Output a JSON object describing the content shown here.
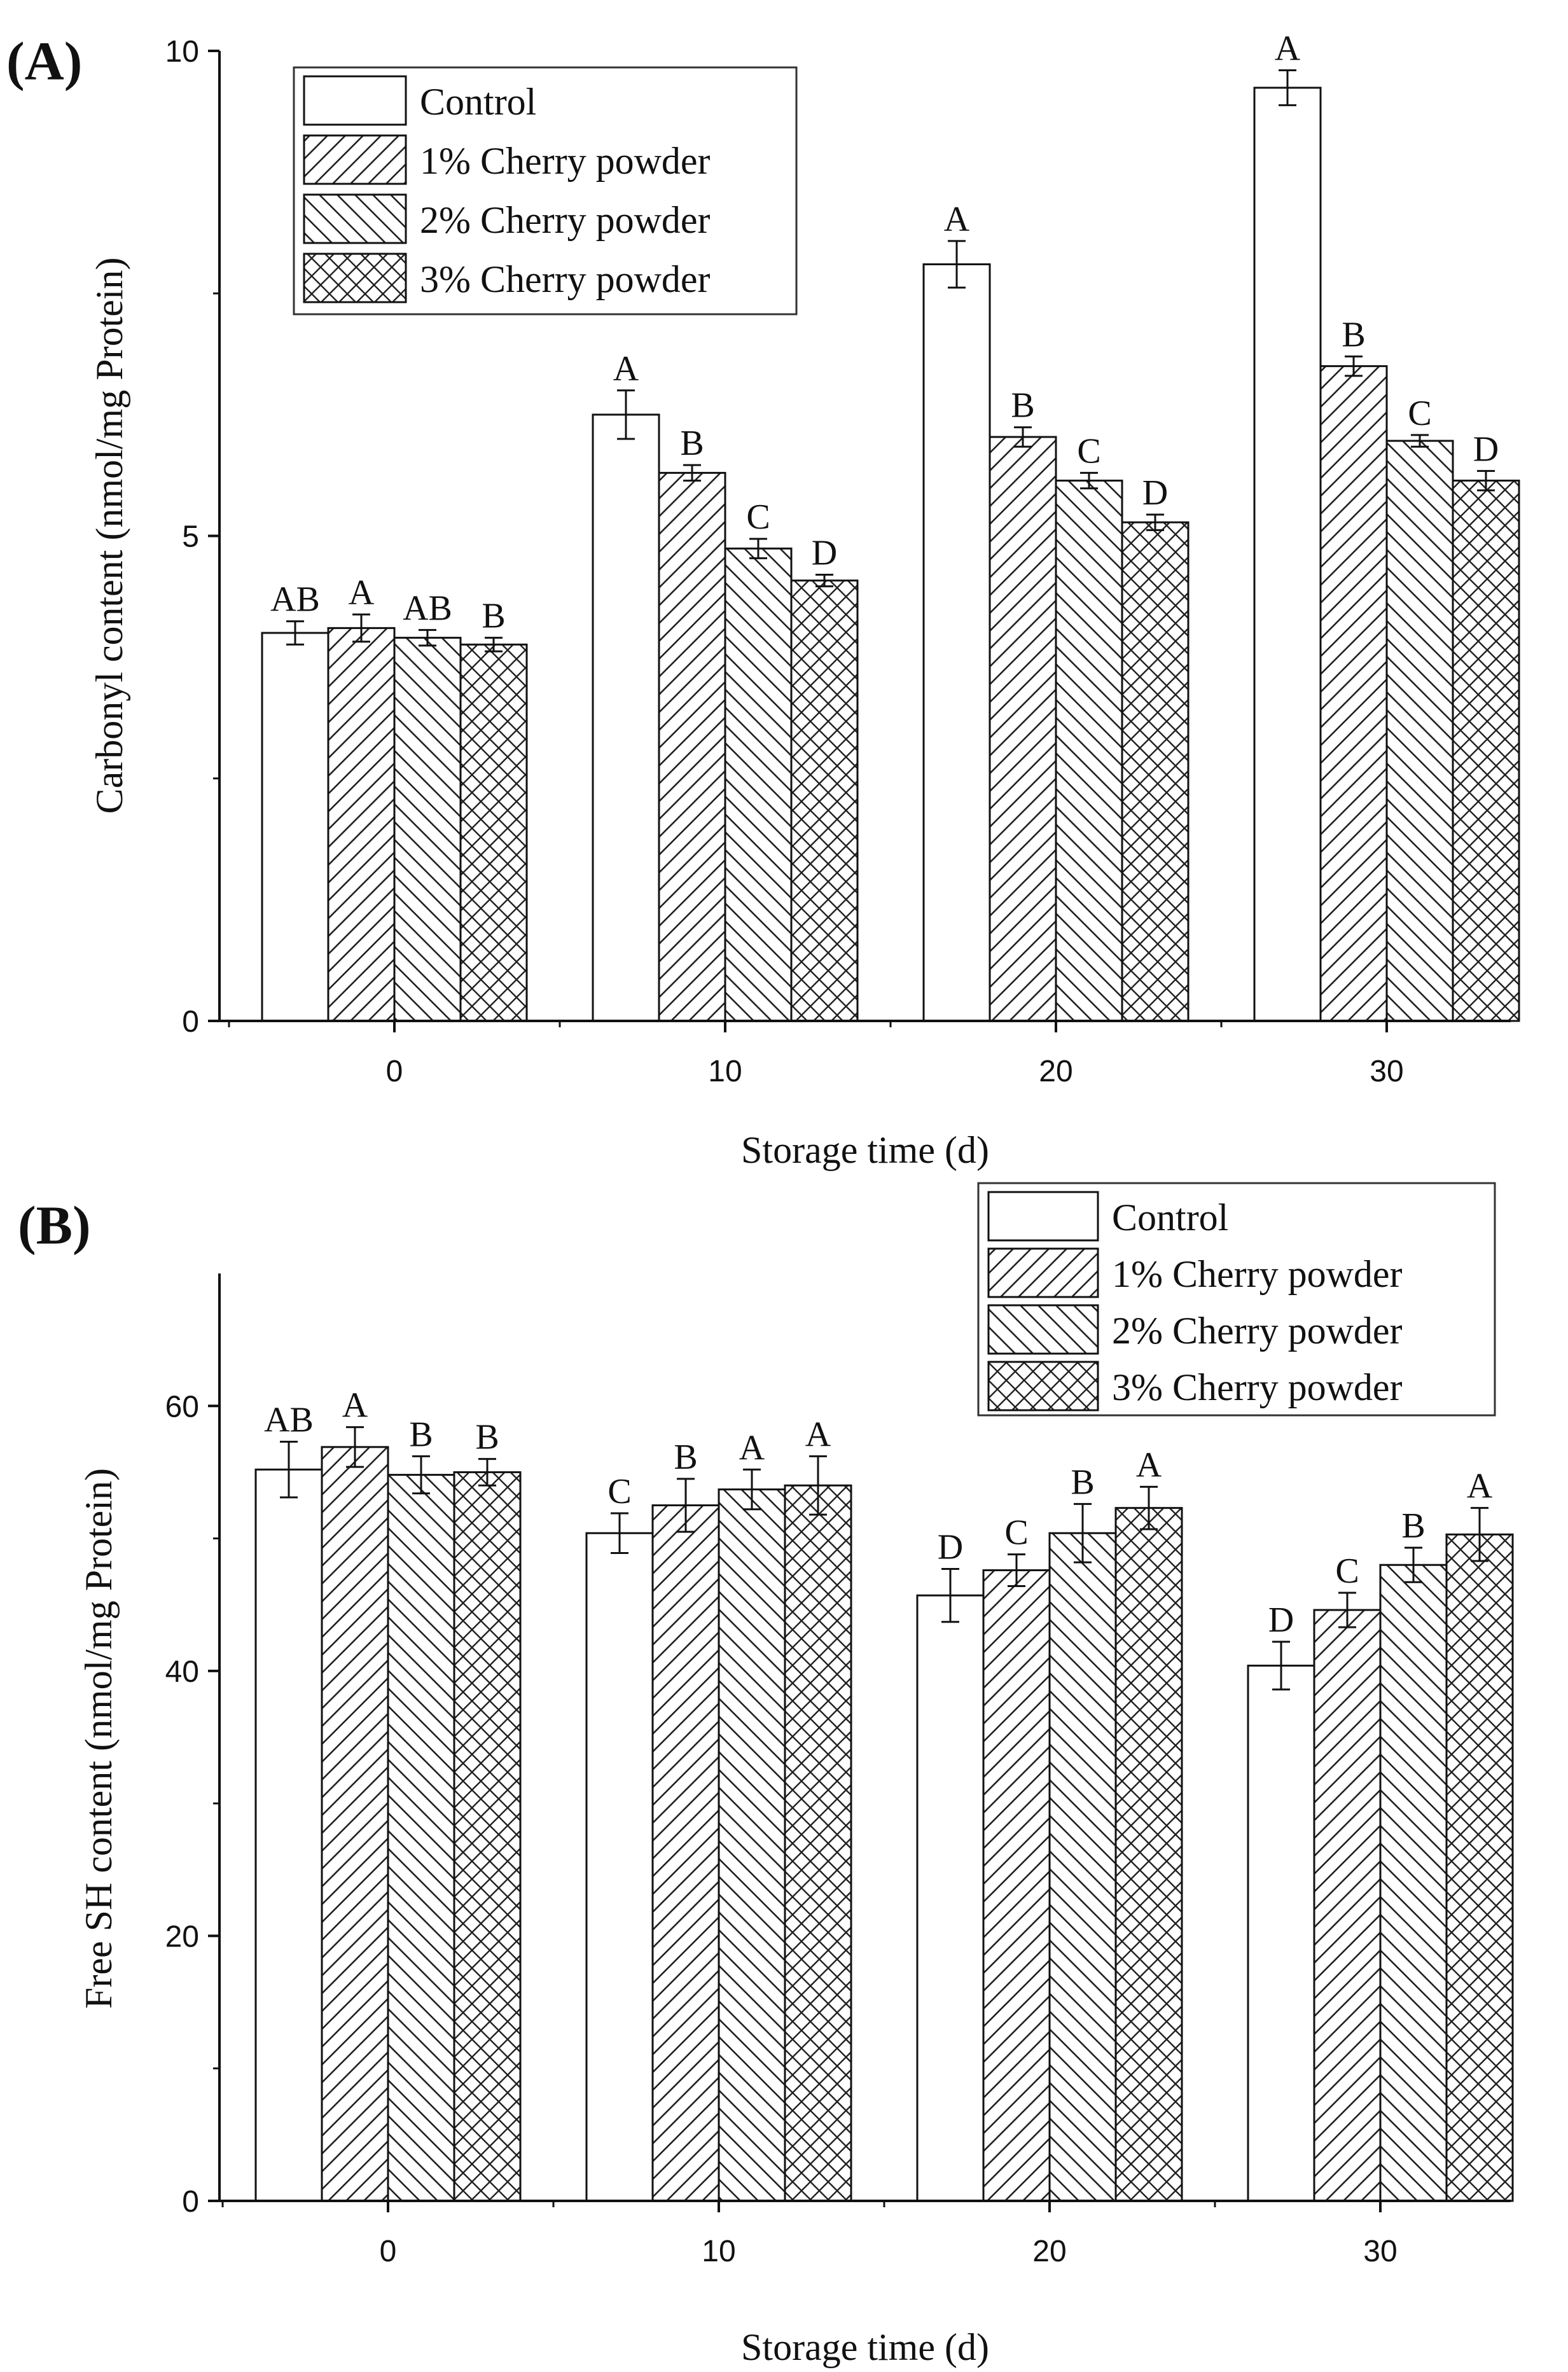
{
  "chart_data": [
    {
      "panel_label": "(A)",
      "type": "bar",
      "title": "",
      "xlabel": "Storage time (d)",
      "ylabel": "Carbonyl content (nmol/mg Protein)",
      "categories": [
        "0",
        "10",
        "20",
        "30"
      ],
      "ylim": [
        0,
        10
      ],
      "yticks": [
        0,
        5,
        10
      ],
      "ytick_labels": [
        "0",
        "5",
        "10"
      ],
      "legend_position": "top-left",
      "series": [
        {
          "name": "Control",
          "pattern": "none",
          "values": [
            4.0,
            6.25,
            7.8,
            9.62
          ],
          "errors": [
            0.12,
            0.25,
            0.24,
            0.18
          ],
          "letters": [
            "AB",
            "A",
            "A",
            "A"
          ]
        },
        {
          "name": "1% Cherry powder",
          "pattern": "diag-right",
          "values": [
            4.05,
            5.65,
            6.02,
            6.75
          ],
          "errors": [
            0.14,
            0.08,
            0.1,
            0.1
          ],
          "letters": [
            "A",
            "B",
            "B",
            "B"
          ]
        },
        {
          "name": "2% Cherry powder",
          "pattern": "diag-left",
          "values": [
            3.95,
            4.87,
            5.57,
            5.98
          ],
          "errors": [
            0.08,
            0.1,
            0.08,
            0.06
          ],
          "letters": [
            "AB",
            "C",
            "C",
            "C"
          ]
        },
        {
          "name": "3% Cherry powder",
          "pattern": "cross",
          "values": [
            3.88,
            4.54,
            5.14,
            5.57
          ],
          "errors": [
            0.07,
            0.06,
            0.08,
            0.1
          ],
          "letters": [
            "B",
            "D",
            "D",
            "D"
          ]
        }
      ]
    },
    {
      "panel_label": "(B)",
      "type": "bar",
      "title": "",
      "xlabel": "Storage time (d)",
      "ylabel": "Free SH content (nmol/mg Protein)",
      "categories": [
        "0",
        "10",
        "20",
        "30"
      ],
      "ylim": [
        0,
        70
      ],
      "yticks": [
        0,
        20,
        40,
        60
      ],
      "ytick_labels": [
        "0",
        "20",
        "40",
        "60"
      ],
      "legend_position": "top-right",
      "series": [
        {
          "name": "Control",
          "pattern": "none",
          "values": [
            55.2,
            50.4,
            45.7,
            40.4
          ],
          "errors": [
            2.1,
            1.5,
            2.0,
            1.8
          ],
          "letters": [
            "AB",
            "C",
            "D",
            "D"
          ]
        },
        {
          "name": "1% Cherry powder",
          "pattern": "diag-right",
          "values": [
            56.9,
            52.5,
            47.6,
            44.6
          ],
          "errors": [
            1.5,
            2.0,
            1.2,
            1.3
          ],
          "letters": [
            "A",
            "B",
            "C",
            "C"
          ]
        },
        {
          "name": "2% Cherry powder",
          "pattern": "diag-left",
          "values": [
            54.8,
            53.7,
            50.4,
            48.0
          ],
          "errors": [
            1.4,
            1.5,
            2.2,
            1.3
          ],
          "letters": [
            "B",
            "A",
            "B",
            "B"
          ]
        },
        {
          "name": "3% Cherry powder",
          "pattern": "cross",
          "values": [
            55.0,
            54.0,
            52.3,
            50.3
          ],
          "errors": [
            1.0,
            2.2,
            1.6,
            2.0
          ],
          "letters": [
            "B",
            "A",
            "A",
            "A"
          ]
        }
      ]
    }
  ]
}
